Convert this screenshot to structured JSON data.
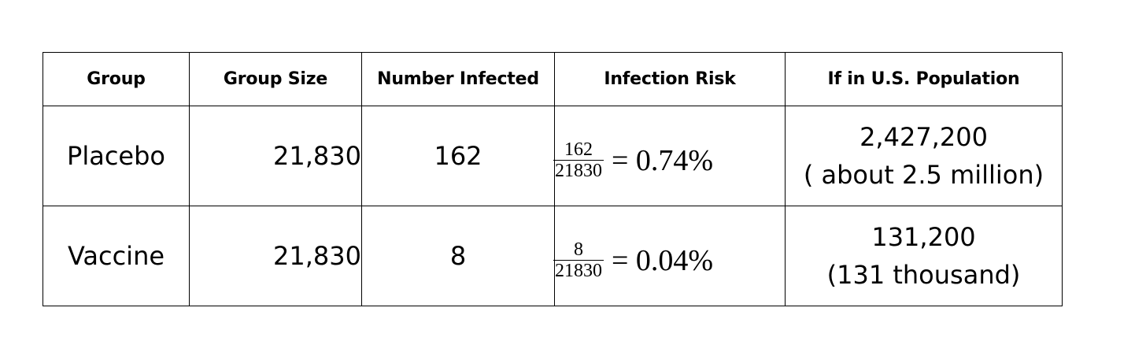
{
  "table": {
    "headers": [
      "Group",
      "Group Size",
      "Number Infected",
      "Infection Risk",
      "If in U.S. Population"
    ],
    "rows": [
      {
        "group": "Placebo",
        "size": "21,830",
        "infected": "162",
        "risk": {
          "numerator": "162",
          "denominator": "21830",
          "result": "= 0.74%"
        },
        "population": {
          "value": "2,427,200",
          "approx": "( about 2.5 million)"
        }
      },
      {
        "group": "Vaccine",
        "size": "21,830",
        "infected": "8",
        "risk": {
          "numerator": "8",
          "denominator": "21830",
          "result": "= 0.04%"
        },
        "population": {
          "value": "131,200",
          "approx": "(131 thousand)"
        }
      }
    ]
  }
}
